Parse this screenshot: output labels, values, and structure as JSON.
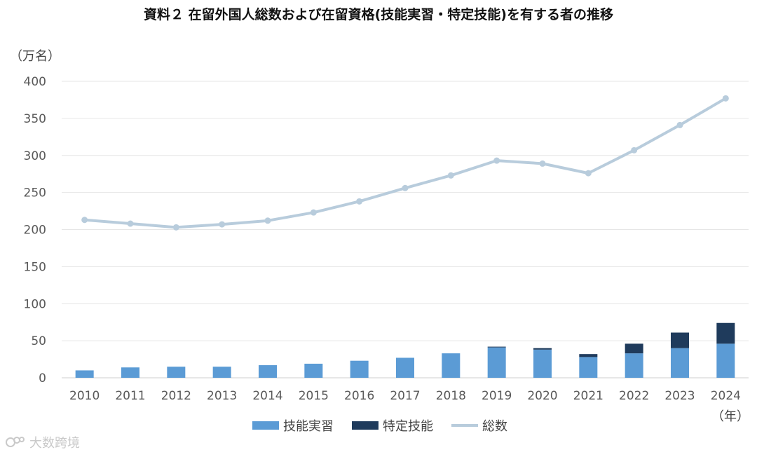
{
  "title": "資料２ 在留外国人総数および在留資格(技能実習・特定技能)を有する者の推移",
  "watermark": "大数跨境",
  "colors": {
    "ginou_jisshu": "#5b9bd5",
    "tokutei_ginou": "#1f3b5c",
    "total": "#b8ccdc",
    "grid": "#e6e6e6",
    "axis_text": "#595959"
  },
  "chart_data": {
    "type": "bar",
    "ylabel": "（万名）",
    "xlabel": "（年）",
    "ylim": [
      0,
      400
    ],
    "yticks": [
      0,
      50,
      100,
      150,
      200,
      250,
      300,
      350,
      400
    ],
    "categories": [
      "2010",
      "2011",
      "2012",
      "2013",
      "2014",
      "2015",
      "2016",
      "2017",
      "2018",
      "2019",
      "2020",
      "2021",
      "2022",
      "2023",
      "2024"
    ],
    "series": [
      {
        "name": "技能実習",
        "type": "bar",
        "stack": "visa",
        "values": [
          10,
          14,
          15,
          15,
          17,
          19,
          23,
          27,
          33,
          41,
          38,
          28,
          33,
          40,
          46
        ]
      },
      {
        "name": "特定技能",
        "type": "bar",
        "stack": "visa",
        "values": [
          0,
          0,
          0,
          0,
          0,
          0,
          0,
          0,
          0,
          1,
          2,
          4,
          13,
          21,
          28
        ]
      },
      {
        "name": "総数",
        "type": "line",
        "values": [
          213,
          208,
          203,
          207,
          212,
          223,
          238,
          256,
          273,
          293,
          289,
          276,
          307,
          341,
          377
        ]
      }
    ],
    "grid": true,
    "legend_position": "bottom"
  }
}
